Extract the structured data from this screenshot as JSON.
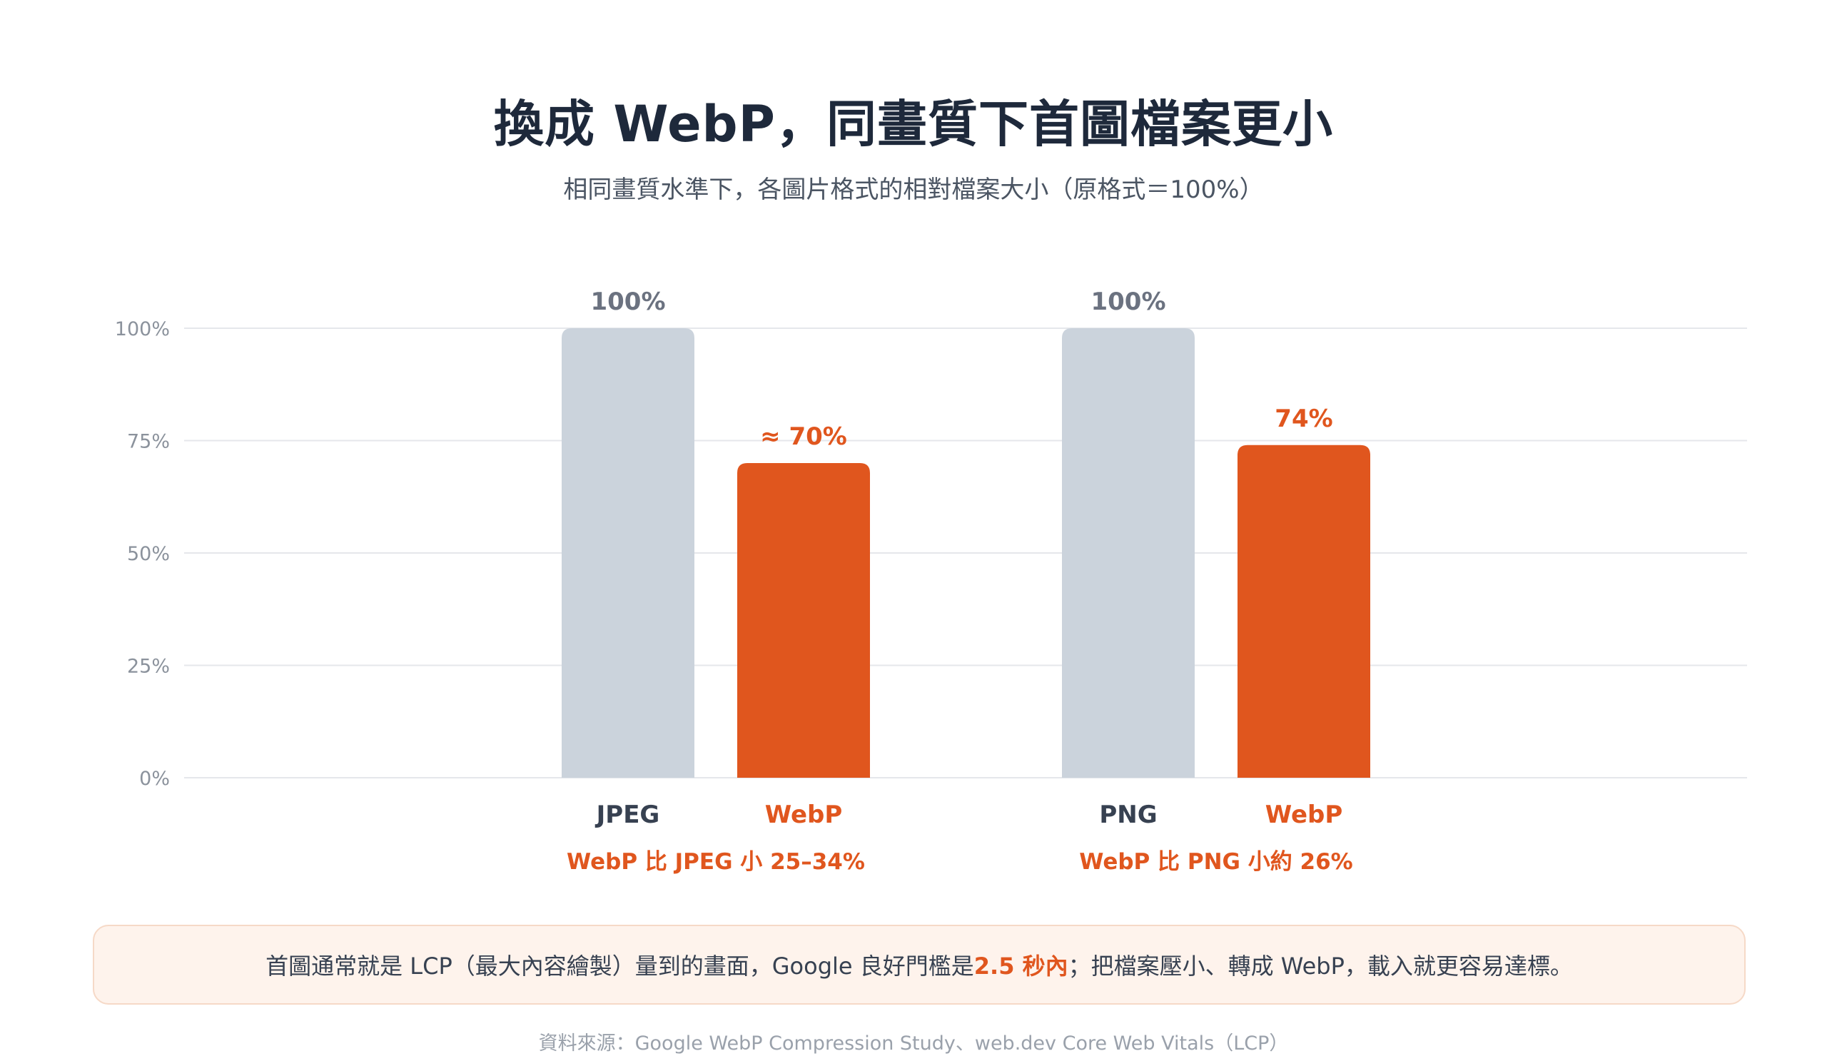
{
  "header": {
    "title": "換成 WebP，同畫質下首圖檔案更小",
    "subtitle": "相同畫質水準下，各圖片格式的相對檔案大小（原格式＝100%）"
  },
  "colors": {
    "original": "#cbd3dc",
    "webp": "#e0561e",
    "grid": "#e5e7eb",
    "tick": "#8b929c",
    "original_value": "#6b7280",
    "category_original": "#374151"
  },
  "chart_data": {
    "type": "bar",
    "ylim": [
      0,
      100
    ],
    "yticks": [
      "0%",
      "25%",
      "50%",
      "75%",
      "100%"
    ],
    "ytick_values": [
      0,
      25,
      50,
      75,
      100
    ],
    "grid": true,
    "groups": [
      {
        "caption": "WebP 比 JPEG 小 25–34%",
        "bars": [
          {
            "category": "JPEG",
            "value": 100,
            "label": "100%",
            "kind": "original"
          },
          {
            "category": "WebP",
            "value": 70,
            "label": "≈ 70%",
            "kind": "webp"
          }
        ]
      },
      {
        "caption": "WebP 比 PNG 小約 26%",
        "bars": [
          {
            "category": "PNG",
            "value": 100,
            "label": "100%",
            "kind": "original"
          },
          {
            "category": "WebP",
            "value": 74,
            "label": "74%",
            "kind": "webp"
          }
        ]
      }
    ]
  },
  "callout": {
    "before": "首圖通常就是 LCP（最大內容繪製）量到的畫面，Google 良好門檻是 ",
    "highlight": "2.5 秒內",
    "after": "；把檔案壓小、轉成 WebP，載入就更容易達標。"
  },
  "source": "資料來源：Google WebP Compression Study、web.dev Core Web Vitals（LCP）"
}
